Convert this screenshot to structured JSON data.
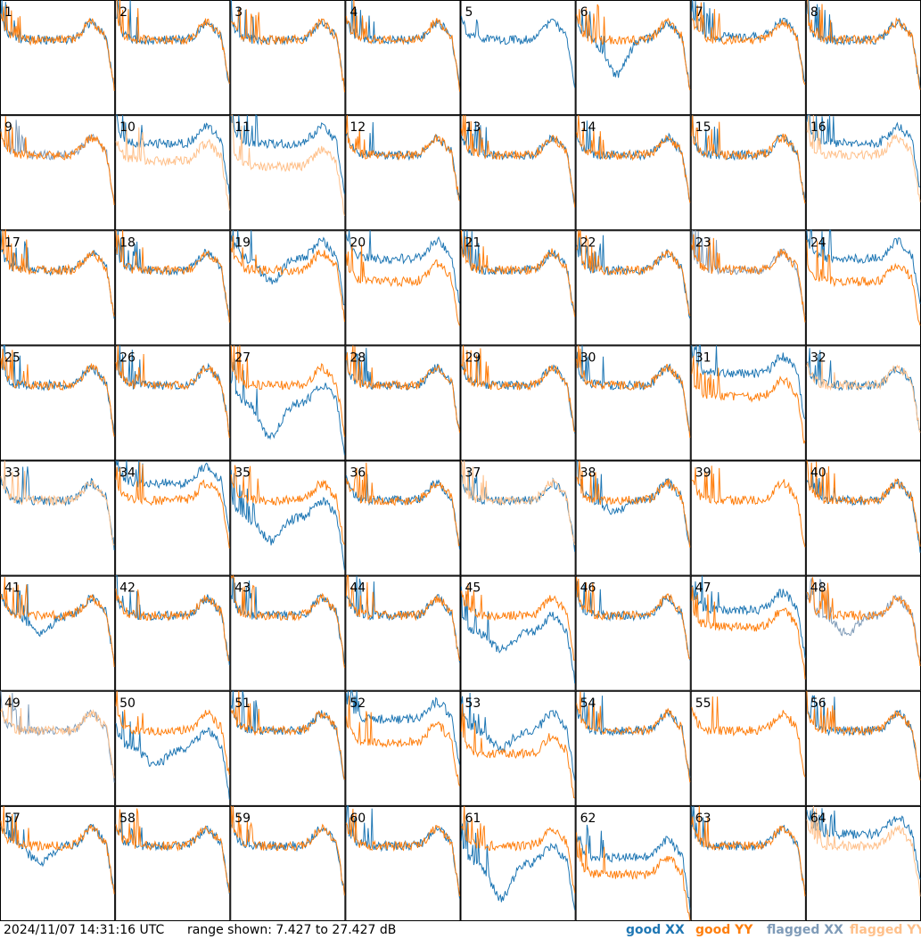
{
  "chart_data": {
    "type": "line",
    "layout": "small-multiples 8x8",
    "panel_labels": [
      "1",
      "2",
      "3",
      "4",
      "5",
      "6",
      "7",
      "8",
      "9",
      "10",
      "11",
      "12",
      "13",
      "14",
      "15",
      "16",
      "17",
      "18",
      "19",
      "20",
      "21",
      "22",
      "23",
      "24",
      "25",
      "26",
      "27",
      "28",
      "29",
      "30",
      "31",
      "32",
      "33",
      "34",
      "35",
      "36",
      "37",
      "38",
      "39",
      "40",
      "41",
      "42",
      "43",
      "44",
      "45",
      "46",
      "47",
      "48",
      "49",
      "50",
      "51",
      "52",
      "53",
      "54",
      "55",
      "56",
      "57",
      "58",
      "59",
      "60",
      "61",
      "62",
      "63",
      "64"
    ],
    "ylim": [
      7.427,
      27.427
    ],
    "yunit": "dB",
    "series": [
      {
        "name": "good XX",
        "color": "#1f77b4"
      },
      {
        "name": "good YY",
        "color": "#ff7f0e"
      },
      {
        "name": "flagged XX",
        "color": "#7f9bb8"
      },
      {
        "name": "flagged YY",
        "color": "#ffc08a"
      }
    ],
    "panels": {
      "xx_offset_db": [
        0,
        0,
        0,
        0,
        0,
        0,
        0.5,
        0,
        0,
        2,
        2,
        0,
        0,
        0,
        0,
        2,
        0,
        0,
        2,
        2,
        0,
        0,
        0,
        2,
        0,
        0,
        -3,
        0,
        0,
        0,
        2,
        0,
        0,
        3,
        -3,
        0,
        0,
        0,
        0,
        0,
        0,
        0,
        0,
        0,
        -3,
        0,
        1,
        0,
        0,
        -3,
        0,
        2,
        0,
        0,
        0,
        0,
        0,
        0,
        0,
        0,
        -3,
        -2,
        0,
        2
      ],
      "xx_dip_db": [
        0,
        0,
        0,
        0,
        0,
        6,
        0,
        0,
        0,
        0,
        0,
        0,
        0,
        0,
        0,
        0,
        0,
        0,
        4,
        0,
        0,
        0,
        0,
        0,
        0,
        0,
        6,
        0,
        0,
        0,
        0,
        0,
        0,
        0,
        4,
        0,
        0,
        2,
        0,
        0,
        3,
        0,
        0,
        0,
        3,
        0,
        0,
        3,
        0,
        3,
        0,
        0,
        3,
        0,
        0,
        0,
        3,
        0,
        0,
        0,
        6,
        0,
        0,
        0
      ],
      "yy_offset_db": [
        0,
        0,
        0,
        0,
        0,
        0,
        0,
        0,
        0,
        -1,
        -2,
        0,
        0,
        0,
        0,
        0,
        0,
        0,
        0,
        -2,
        0,
        0,
        0,
        -2,
        0,
        0,
        0,
        0,
        0,
        0,
        -2,
        0,
        0,
        0,
        0,
        0,
        0,
        0,
        0,
        0,
        0,
        0,
        0,
        0,
        0,
        0,
        -2,
        0,
        0,
        0,
        0,
        -2,
        -4,
        0,
        0,
        0,
        0,
        0,
        0,
        0,
        0,
        -5,
        0,
        0
      ],
      "xx_absent": [
        9,
        23,
        39,
        48,
        49,
        55
      ],
      "yy_absent": [
        5,
        16,
        32,
        64
      ],
      "flagged_xx": [
        9,
        23,
        48,
        49
      ],
      "flagged_yy": [
        10,
        11,
        16,
        32,
        33,
        37,
        49,
        64
      ]
    }
  },
  "footer": {
    "timestamp": "2024/11/07 14:31:16 UTC",
    "range_text": "range shown: 7.427 to 27.427 dB"
  },
  "legend": {
    "good_xx": {
      "label": "good XX",
      "color": "#1f77b4"
    },
    "good_yy": {
      "label": "good YY",
      "color": "#ff7f0e"
    },
    "flagged_xx": {
      "label": "flagged XX",
      "color": "#7f9bb8"
    },
    "flagged_yy": {
      "label": "flagged YY",
      "color": "#ffc08a"
    }
  }
}
